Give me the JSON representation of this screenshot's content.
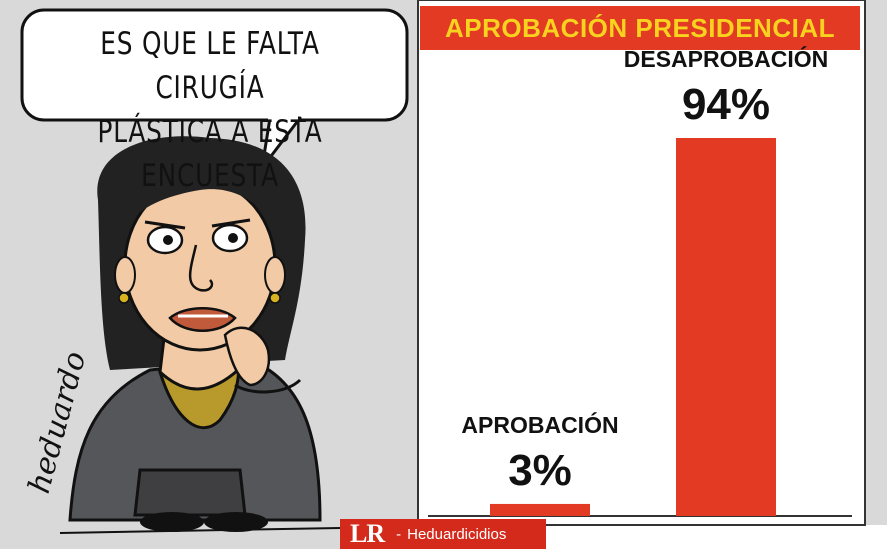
{
  "speech_bubble": {
    "line1": "ES QUE LE FALTA CIRUGÍA",
    "line2": "PLÁSTICA A ESTA ENCUESTA"
  },
  "signature": "heduardo",
  "chart_data": {
    "type": "bar",
    "title": "APROBACIÓN PRESIDENCIAL",
    "categories": [
      "APROBACIÓN",
      "DESAPROBACIÓN"
    ],
    "values": [
      3,
      94
    ],
    "value_labels": [
      "3%",
      "94%"
    ],
    "ylim": [
      0,
      100
    ],
    "grid": false,
    "xlabel": "",
    "ylabel": ""
  },
  "credit": {
    "logo": "LR",
    "separator": "-",
    "author": "Heduardicidios"
  },
  "colors": {
    "bar": "#e23a23",
    "title_band": "#e23a23",
    "title_text": "#f7d21e",
    "background_panel": "#d9d9d9",
    "credit_band": "#d42a1c"
  }
}
